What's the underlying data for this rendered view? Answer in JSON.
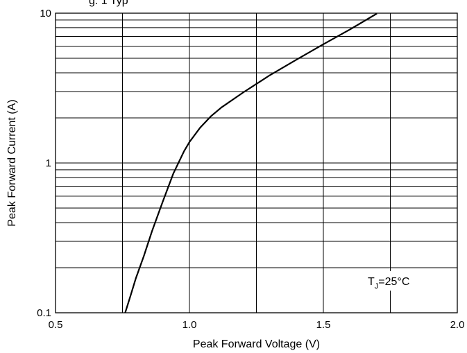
{
  "chart_data": {
    "type": "line",
    "title_fragment": "g. 1 Typ",
    "xlabel": "Peak Forward Voltage (V)",
    "ylabel": "Peak Forward Current (A)",
    "xlim": [
      0.5,
      2.0
    ],
    "ylim": [
      0.1,
      10
    ],
    "yscale": "log",
    "x_ticks": [
      0.5,
      0.75,
      1.0,
      1.25,
      1.5,
      1.75,
      2.0
    ],
    "x_tick_labels": [
      "0.5",
      "",
      "1.0",
      "",
      "1.5",
      "",
      "2.0"
    ],
    "y_tick_labels": [
      "0.1",
      "1",
      "10"
    ],
    "grid": true,
    "annotation": {
      "main": "T",
      "sub": "J",
      "rest": "=25°C"
    },
    "series": [
      {
        "x": [
          0.76,
          0.78,
          0.8,
          0.83,
          0.86,
          0.9,
          0.94,
          0.98,
          1.0,
          1.04,
          1.08,
          1.12,
          1.2,
          1.3,
          1.4,
          1.5,
          1.6,
          1.7
        ],
        "y": [
          0.1,
          0.13,
          0.17,
          0.24,
          0.35,
          0.55,
          0.85,
          1.2,
          1.38,
          1.72,
          2.05,
          2.35,
          2.95,
          3.85,
          4.9,
          6.2,
          7.8,
          9.95
        ]
      }
    ]
  }
}
